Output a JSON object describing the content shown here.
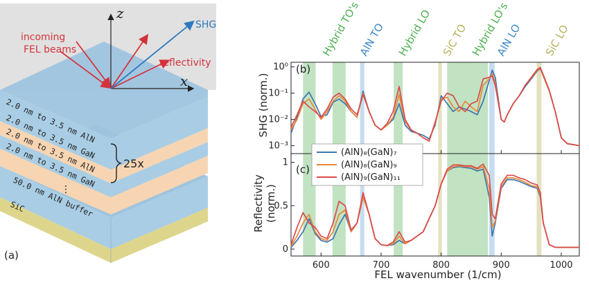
{
  "schematic": {
    "axis_z": "z",
    "axis_x": "x",
    "label_shg": "SHG",
    "label_incoming_1": "incoming",
    "label_incoming_2": "FEL beams",
    "label_reflectivity": "reflectivity",
    "layers": [
      "2.0 nm to 3.5 nm AlN",
      "2.0 nm to 3.5 nm GaN",
      "2.0 nm to 3.5 nm AlN",
      "2.0 nm to 3.5 nm GaN"
    ],
    "repeat": "25x",
    "dots": "⋮",
    "buffer": "50.0 nm AlN buffer",
    "substrate": "SiC",
    "panel_label": "(a)",
    "colors": {
      "aln": "#a9cde4",
      "gan": "#f7d5b3",
      "sic": "#ddd58b",
      "top": "#9fc4df",
      "beam_in": "#d3333a",
      "beam_shg": "#2d7ac0"
    }
  },
  "band_labels": [
    {
      "text": "Hybrid TO's",
      "color": "#4caf50"
    },
    {
      "text": "AlN TO",
      "color": "#3e88c8"
    },
    {
      "text": "Hybrid LO",
      "color": "#4caf50"
    },
    {
      "text": "SiC TO",
      "color": "#b5b15a"
    },
    {
      "text": "Hybrid LO's",
      "color": "#4caf50"
    },
    {
      "text": "AlN LO",
      "color": "#3e88c8"
    },
    {
      "text": "SiC LO",
      "color": "#b5b15a"
    }
  ],
  "chart_data": [
    {
      "type": "line",
      "panel": "(b)",
      "ylabel": "SHG (norm.)",
      "yscale": "log",
      "ylim": [
        0.0005,
        1.5
      ],
      "xlim": [
        550,
        1030
      ],
      "yticks": [
        "10⁻³",
        "10⁻²",
        "10⁻¹",
        "10⁰"
      ],
      "bands": [
        {
          "x0": 570,
          "x1": 591,
          "color": "#4caf50"
        },
        {
          "x0": 619,
          "x1": 641,
          "color": "#4caf50"
        },
        {
          "x0": 665,
          "x1": 672,
          "color": "#5b9bd5"
        },
        {
          "x0": 721,
          "x1": 736,
          "color": "#4caf50"
        },
        {
          "x0": 795,
          "x1": 801,
          "color": "#b5a94a"
        },
        {
          "x0": 810,
          "x1": 878,
          "color": "#4caf50"
        },
        {
          "x0": 880,
          "x1": 889,
          "color": "#5b9bd5"
        },
        {
          "x0": 959,
          "x1": 967,
          "color": "#b5a94a"
        }
      ],
      "x": [
        550,
        560,
        570,
        580,
        590,
        600,
        610,
        620,
        630,
        640,
        650,
        660,
        670,
        680,
        690,
        700,
        710,
        720,
        730,
        740,
        750,
        760,
        770,
        780,
        790,
        800,
        810,
        820,
        830,
        840,
        850,
        860,
        870,
        880,
        885,
        890,
        900,
        905,
        910,
        920,
        930,
        940,
        950,
        960,
        965,
        970,
        980,
        990,
        1000,
        1010,
        1020,
        1030
      ],
      "series": [
        {
          "name": "(AlN)₈(GaN)₇",
          "color": "#3b75af",
          "values": [
            0.003,
            0.012,
            0.06,
            0.11,
            0.04,
            0.013,
            0.015,
            0.045,
            0.06,
            0.04,
            0.02,
            0.012,
            0.12,
            0.02,
            0.006,
            0.004,
            0.006,
            0.01,
            0.04,
            0.006,
            0.0035,
            0.003,
            0.0025,
            0.0018,
            0.006,
            0.08,
            0.04,
            0.02,
            0.03,
            0.025,
            0.02,
            0.015,
            0.05,
            0.3,
            0.75,
            0.4,
            0.01,
            0.008,
            0.015,
            0.04,
            0.08,
            0.18,
            0.35,
            0.7,
            0.85,
            0.45,
            0.12,
            0.02,
            0.002,
            0.0012,
            0.0011,
            0.001
          ]
        },
        {
          "name": "(AlN)₈(GaN)₉",
          "color": "#e8883a",
          "values": [
            0.004,
            0.01,
            0.04,
            0.06,
            0.025,
            0.01,
            0.02,
            0.05,
            0.08,
            0.05,
            0.02,
            0.012,
            0.1,
            0.02,
            0.006,
            0.004,
            0.006,
            0.012,
            0.09,
            0.008,
            0.004,
            0.003,
            0.002,
            0.0015,
            0.007,
            0.06,
            0.07,
            0.03,
            0.02,
            0.05,
            0.03,
            0.02,
            0.2,
            0.35,
            0.55,
            0.25,
            0.01,
            0.008,
            0.015,
            0.04,
            0.08,
            0.2,
            0.38,
            0.75,
            0.9,
            0.45,
            0.12,
            0.02,
            0.002,
            0.0012,
            0.0011,
            0.001
          ]
        },
        {
          "name": "(AlN)₉(GaN)₁₁",
          "color": "#d94a4a",
          "values": [
            0.005,
            0.015,
            0.05,
            0.03,
            0.02,
            0.012,
            0.025,
            0.07,
            0.1,
            0.06,
            0.025,
            0.015,
            0.09,
            0.02,
            0.006,
            0.004,
            0.007,
            0.02,
            0.18,
            0.01,
            0.004,
            0.003,
            0.002,
            0.0015,
            0.008,
            0.05,
            0.1,
            0.08,
            0.03,
            0.02,
            0.04,
            0.05,
            0.35,
            0.4,
            0.45,
            0.2,
            0.01,
            0.008,
            0.015,
            0.04,
            0.08,
            0.2,
            0.4,
            0.8,
            0.95,
            0.5,
            0.13,
            0.02,
            0.002,
            0.0012,
            0.0011,
            0.001
          ]
        }
      ]
    },
    {
      "type": "line",
      "panel": "(c)",
      "ylabel": "Reflectivity\n(norm.)",
      "ylim": [
        -0.08,
        1.1
      ],
      "xlim": [
        550,
        1030
      ],
      "xlabel": "FEL wavenumber (1/cm)",
      "xticks": [
        600,
        700,
        800,
        900,
        1000
      ],
      "yticks": [
        0,
        0.5,
        1
      ],
      "bands": "same as (b)",
      "x": [
        550,
        560,
        570,
        580,
        590,
        600,
        610,
        620,
        630,
        640,
        650,
        660,
        670,
        680,
        690,
        700,
        710,
        720,
        730,
        740,
        750,
        760,
        770,
        780,
        790,
        800,
        810,
        820,
        830,
        840,
        850,
        860,
        870,
        880,
        885,
        890,
        900,
        910,
        920,
        930,
        940,
        950,
        960,
        965,
        970,
        980,
        990,
        1000,
        1010,
        1020,
        1030
      ],
      "series": [
        {
          "name": "(AlN)₈(GaN)₇",
          "color": "#3b75af",
          "values": [
            0.02,
            0.1,
            0.2,
            0.35,
            0.18,
            0.1,
            0.08,
            0.12,
            0.28,
            0.4,
            0.2,
            0.3,
            0.6,
            0.4,
            0.12,
            0.05,
            0.04,
            0.05,
            0.1,
            0.06,
            0.1,
            0.15,
            0.2,
            0.35,
            0.5,
            0.75,
            0.9,
            0.94,
            0.95,
            0.94,
            0.93,
            0.9,
            0.92,
            0.6,
            0.15,
            0.3,
            0.7,
            0.8,
            0.8,
            0.78,
            0.75,
            0.72,
            0.7,
            0.6,
            0.3,
            0.05,
            0.02,
            0.02,
            0.02,
            0.02,
            0.02
          ]
        },
        {
          "name": "(AlN)₈(GaN)₉",
          "color": "#e8883a",
          "values": [
            0.03,
            0.15,
            0.3,
            0.4,
            0.2,
            0.12,
            0.1,
            0.2,
            0.4,
            0.45,
            0.2,
            0.3,
            0.6,
            0.4,
            0.12,
            0.05,
            0.04,
            0.06,
            0.15,
            0.06,
            0.1,
            0.15,
            0.2,
            0.35,
            0.5,
            0.75,
            0.9,
            0.95,
            0.96,
            0.95,
            0.95,
            0.92,
            0.95,
            0.7,
            0.25,
            0.32,
            0.72,
            0.82,
            0.82,
            0.8,
            0.77,
            0.73,
            0.72,
            0.62,
            0.3,
            0.05,
            0.02,
            0.02,
            0.02,
            0.02,
            0.02
          ]
        },
        {
          "name": "(AlN)₉(GaN)₁₁",
          "color": "#d94a4a",
          "values": [
            0.05,
            0.25,
            0.42,
            0.3,
            0.25,
            0.15,
            0.12,
            0.3,
            0.55,
            0.5,
            0.22,
            0.3,
            0.65,
            0.4,
            0.12,
            0.05,
            0.04,
            0.08,
            0.2,
            0.08,
            0.1,
            0.15,
            0.2,
            0.35,
            0.5,
            0.75,
            0.92,
            0.97,
            0.97,
            0.96,
            0.96,
            0.93,
            0.98,
            0.85,
            0.4,
            0.35,
            0.75,
            0.85,
            0.85,
            0.82,
            0.8,
            0.76,
            0.74,
            0.65,
            0.3,
            0.05,
            0.02,
            0.02,
            0.02,
            0.02,
            0.02
          ]
        }
      ]
    }
  ]
}
